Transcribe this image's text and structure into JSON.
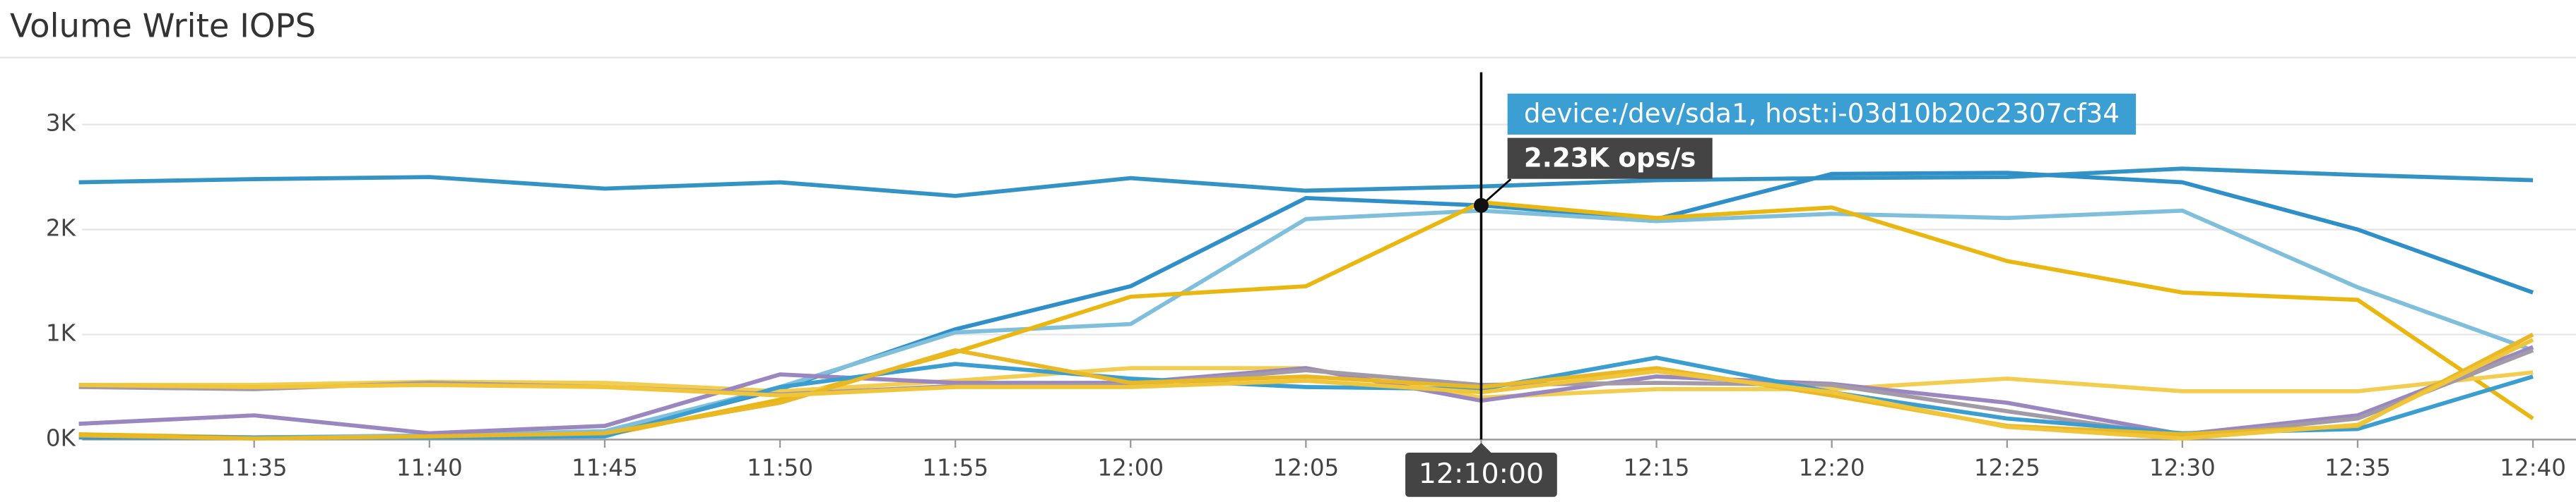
{
  "chart_data": {
    "type": "line",
    "title": "Volume Write IOPS",
    "categories": [
      null,
      "11:35",
      "11:40",
      "11:45",
      "11:50",
      "11:55",
      "12:00",
      "12:05",
      "12:10",
      "12:15",
      "12:20",
      "12:25",
      "12:30",
      "12:35",
      "12:40"
    ],
    "ylim": [
      0,
      3560
    ],
    "yticks": [
      {
        "value": 0,
        "label": "0K"
      },
      {
        "value": 1000,
        "label": "1K"
      },
      {
        "value": 2000,
        "label": "2K"
      },
      {
        "value": 3000,
        "label": "3K"
      }
    ],
    "grid": true,
    "series": [
      {
        "color": "#3393c4",
        "values": [
          2450,
          2480,
          2500,
          2390,
          2450,
          2320,
          2490,
          2370,
          2410,
          2470,
          2490,
          2500,
          2580,
          2520,
          2470
        ]
      },
      {
        "color": "#2f8fc8",
        "values": [
          20,
          20,
          30,
          50,
          480,
          1050,
          1460,
          2300,
          2230,
          2100,
          2530,
          2540,
          2450,
          2000,
          1400
        ]
      },
      {
        "color": "#7fbfdc",
        "values": [
          30,
          20,
          40,
          80,
          500,
          1020,
          1100,
          2100,
          2180,
          2080,
          2150,
          2110,
          2180,
          1450,
          850
        ]
      },
      {
        "color": "#e9b70f",
        "values": [
          50,
          20,
          20,
          40,
          380,
          830,
          1360,
          1460,
          2260,
          2110,
          2210,
          1700,
          1400,
          1330,
          200
        ]
      },
      {
        "color": "#f3cd4f",
        "values": [
          520,
          520,
          550,
          540,
          460,
          560,
          680,
          680,
          400,
          480,
          480,
          580,
          460,
          460,
          640
        ]
      },
      {
        "color": "#9b87c0",
        "values": [
          150,
          230,
          60,
          130,
          620,
          540,
          540,
          680,
          370,
          600,
          530,
          350,
          50,
          230,
          880
        ]
      },
      {
        "color": "#a39aa8",
        "values": [
          500,
          480,
          540,
          500,
          430,
          510,
          520,
          660,
          520,
          540,
          520,
          270,
          30,
          200,
          850
        ]
      },
      {
        "color": "#3a9ed0",
        "values": [
          30,
          20,
          20,
          30,
          500,
          720,
          580,
          500,
          480,
          780,
          450,
          200,
          60,
          100,
          600
        ]
      },
      {
        "color": "#eab825",
        "values": [
          40,
          10,
          30,
          60,
          350,
          850,
          540,
          600,
          500,
          680,
          420,
          130,
          50,
          130,
          1000
        ]
      },
      {
        "color": "#f0c53a",
        "values": [
          520,
          500,
          520,
          500,
          420,
          500,
          500,
          560,
          450,
          650,
          450,
          120,
          10,
          140,
          950
        ]
      }
    ],
    "tooltip": {
      "series_label": "device:/dev/sda1, host:i-03d10b20c2307cf34",
      "value_text": "2.23K ops/s",
      "time": "12:10:00",
      "series": 1,
      "index": 8
    }
  }
}
